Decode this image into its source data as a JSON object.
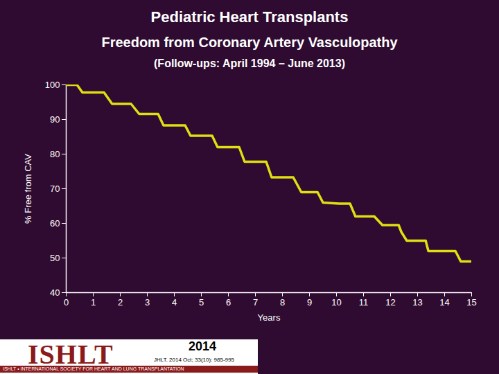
{
  "chart_data": {
    "type": "line",
    "title": "Pediatric Heart Transplants",
    "subtitle": "Freedom from Coronary Artery Vasculopathy",
    "note": "(Follow-ups: April 1994 – June 2013)",
    "x_label": "Years",
    "y_label": "% Free from CAV",
    "x": [
      0,
      0.4,
      0.6,
      1.4,
      1.7,
      2.4,
      2.7,
      3.4,
      3.6,
      4.4,
      4.6,
      5.4,
      5.6,
      6.4,
      6.6,
      7.4,
      7.6,
      8.4,
      8.7,
      9.3,
      9.5,
      10.1,
      10.5,
      10.7,
      11.4,
      11.7,
      12.3,
      12.4,
      12.6,
      13.3,
      13.4,
      14.4,
      14.6,
      15
    ],
    "values": [
      100,
      100,
      97.8,
      97.8,
      94.5,
      94.5,
      91.6,
      91.6,
      88.3,
      88.3,
      85.3,
      85.3,
      82,
      82,
      77.8,
      77.8,
      73.3,
      73.3,
      69,
      69,
      66,
      65.7,
      65.7,
      62,
      62,
      59.5,
      59.5,
      57.5,
      55,
      55,
      52,
      52,
      49,
      49
    ],
    "color": "#e0e010",
    "line_style": "solid",
    "xlim": [
      0,
      15
    ],
    "xticks": [
      0,
      1,
      2,
      3,
      4,
      5,
      6,
      7,
      8,
      9,
      10,
      11,
      12,
      13,
      14,
      15
    ],
    "ylim": [
      40,
      100
    ],
    "yticks": [
      40,
      50,
      60,
      70,
      80,
      90,
      100
    ],
    "grid": false,
    "logo_text": "ISHLT",
    "society": "ISHLT • INTERNATIONAL SOCIETY FOR HEART AND LUNG TRANSPLANTATION",
    "year_badge": "2014",
    "citation": "JHLT. 2014 Oct; 33(10): 985-995"
  }
}
